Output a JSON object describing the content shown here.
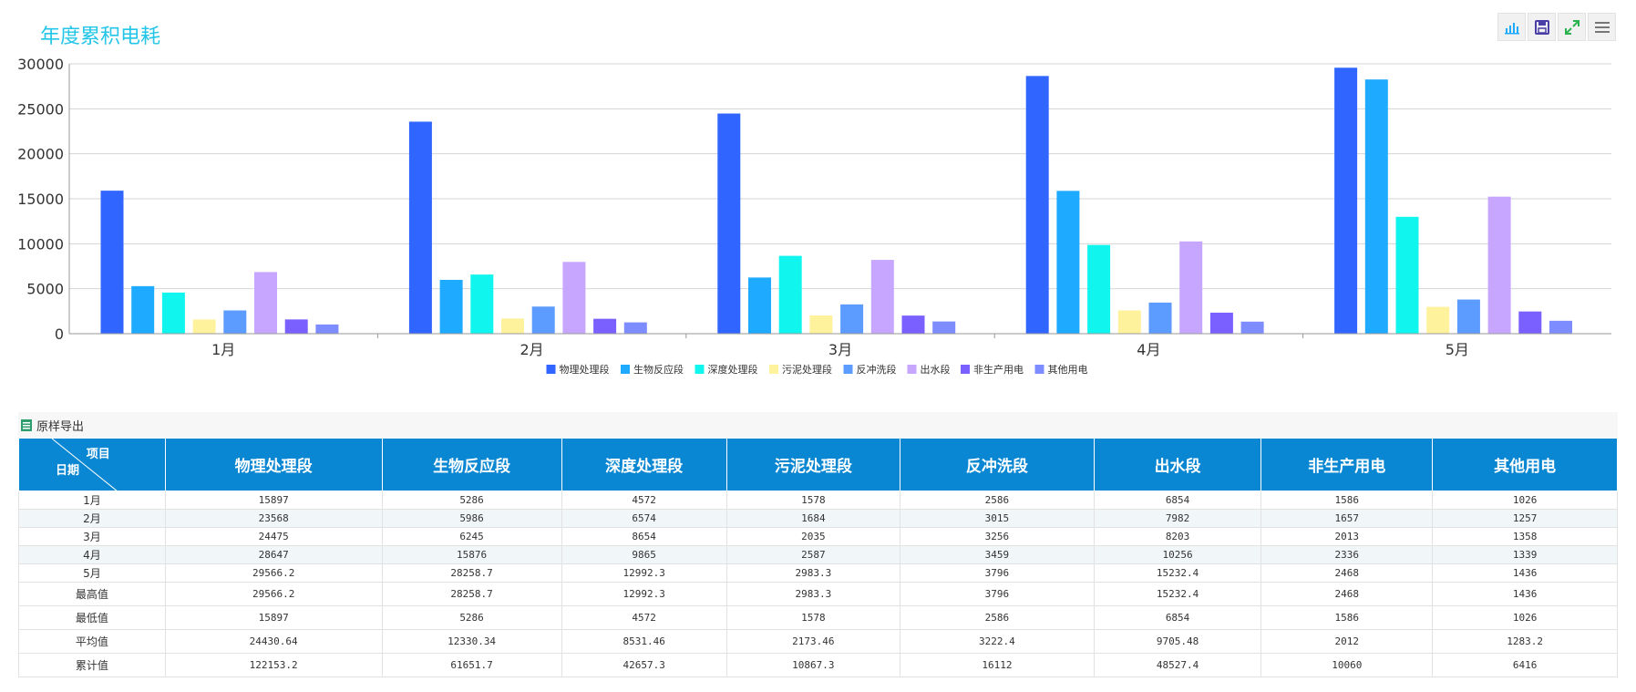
{
  "title": "年度累积电耗",
  "toolbox": {
    "icons": [
      "bar-chart-icon",
      "save-icon",
      "fullscreen-icon",
      "menu-icon"
    ]
  },
  "colors": {
    "title": "#23c5e8",
    "header_bg": "#0a87d2",
    "series": [
      "#3066ff",
      "#1eaaff",
      "#10f5ee",
      "#fff29c",
      "#5c9bff",
      "#c7a6ff",
      "#7a60ff",
      "#7d8cff"
    ]
  },
  "chart_data": {
    "type": "bar",
    "categories": [
      "1月",
      "2月",
      "3月",
      "4月",
      "5月"
    ],
    "ylim": [
      0,
      30000
    ],
    "yticks": [
      0,
      5000,
      10000,
      15000,
      20000,
      25000,
      30000
    ],
    "grid": true,
    "legend_position": "bottom-center",
    "series": [
      {
        "name": "物理处理段",
        "values": [
          15897,
          23568,
          24475,
          28647,
          29566.2
        ]
      },
      {
        "name": "生物反应段",
        "values": [
          5286,
          5986,
          6245,
          15876,
          28258.7
        ]
      },
      {
        "name": "深度处理段",
        "values": [
          4572,
          6574,
          8654,
          9865,
          12992.3
        ]
      },
      {
        "name": "污泥处理段",
        "values": [
          1578,
          1684,
          2035,
          2587,
          2983.3
        ]
      },
      {
        "name": "反冲洗段",
        "values": [
          2586,
          3015,
          3256,
          3459,
          3796
        ]
      },
      {
        "name": "出水段",
        "values": [
          6854,
          7982,
          8203,
          10256,
          15232.4
        ]
      },
      {
        "name": "非生产用电",
        "values": [
          1586,
          1657,
          2013,
          2336,
          2468
        ]
      },
      {
        "name": "其他用电",
        "values": [
          1026,
          1257,
          1358,
          1339,
          1436
        ]
      }
    ]
  },
  "table": {
    "export_label": "原样导出",
    "corner_top": "项目",
    "corner_bottom": "日期",
    "headers": [
      "物理处理段",
      "生物反应段",
      "深度处理段",
      "污泥处理段",
      "反冲洗段",
      "出水段",
      "非生产用电",
      "其他用电"
    ],
    "rows": [
      {
        "label": "1月",
        "cells": [
          "15897",
          "5286",
          "4572",
          "1578",
          "2586",
          "6854",
          "1586",
          "1026"
        ]
      },
      {
        "label": "2月",
        "cells": [
          "23568",
          "5986",
          "6574",
          "1684",
          "3015",
          "7982",
          "1657",
          "1257"
        ]
      },
      {
        "label": "3月",
        "cells": [
          "24475",
          "6245",
          "8654",
          "2035",
          "3256",
          "8203",
          "2013",
          "1358"
        ]
      },
      {
        "label": "4月",
        "cells": [
          "28647",
          "15876",
          "9865",
          "2587",
          "3459",
          "10256",
          "2336",
          "1339"
        ]
      },
      {
        "label": "5月",
        "cells": [
          "29566.2",
          "28258.7",
          "12992.3",
          "2983.3",
          "3796",
          "15232.4",
          "2468",
          "1436"
        ]
      },
      {
        "label": "最高值",
        "cells": [
          "29566.2",
          "28258.7",
          "12992.3",
          "2983.3",
          "3796",
          "15232.4",
          "2468",
          "1436"
        ]
      },
      {
        "label": "最低值",
        "cells": [
          "15897",
          "5286",
          "4572",
          "1578",
          "2586",
          "6854",
          "1586",
          "1026"
        ]
      },
      {
        "label": "平均值",
        "cells": [
          "24430.64",
          "12330.34",
          "8531.46",
          "2173.46",
          "3222.4",
          "9705.48",
          "2012",
          "1283.2"
        ]
      },
      {
        "label": "累计值",
        "cells": [
          "122153.2",
          "61651.7",
          "42657.3",
          "10867.3",
          "16112",
          "48527.4",
          "10060",
          "6416"
        ]
      }
    ]
  }
}
